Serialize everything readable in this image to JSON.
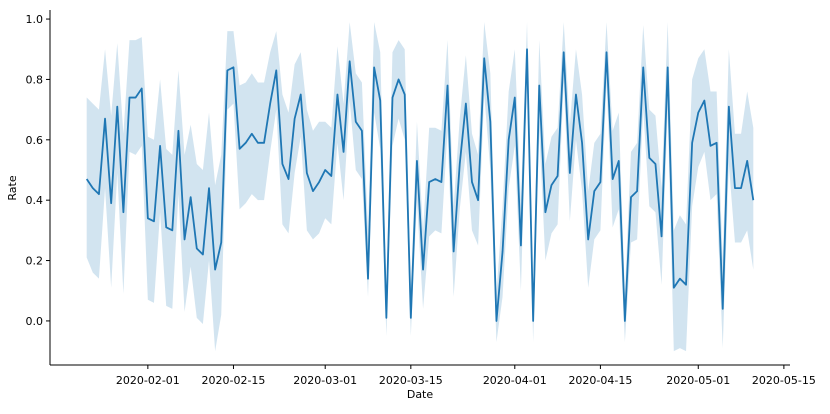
{
  "chart_data": {
    "type": "line",
    "x_label": "Date",
    "y_label": "Rate",
    "x": [
      "2020-01-22",
      "2020-01-23",
      "2020-01-24",
      "2020-01-25",
      "2020-01-26",
      "2020-01-27",
      "2020-01-28",
      "2020-01-29",
      "2020-01-30",
      "2020-01-31",
      "2020-02-01",
      "2020-02-02",
      "2020-02-03",
      "2020-02-04",
      "2020-02-05",
      "2020-02-06",
      "2020-02-07",
      "2020-02-08",
      "2020-02-09",
      "2020-02-10",
      "2020-02-11",
      "2020-02-12",
      "2020-02-13",
      "2020-02-14",
      "2020-02-15",
      "2020-02-16",
      "2020-02-17",
      "2020-02-18",
      "2020-02-19",
      "2020-02-20",
      "2020-02-21",
      "2020-02-22",
      "2020-02-23",
      "2020-02-24",
      "2020-02-25",
      "2020-02-26",
      "2020-02-27",
      "2020-02-28",
      "2020-02-29",
      "2020-03-01",
      "2020-03-02",
      "2020-03-03",
      "2020-03-04",
      "2020-03-05",
      "2020-03-06",
      "2020-03-07",
      "2020-03-08",
      "2020-03-09",
      "2020-03-10",
      "2020-03-11",
      "2020-03-12",
      "2020-03-13",
      "2020-03-14",
      "2020-03-15",
      "2020-03-16",
      "2020-03-17",
      "2020-03-18",
      "2020-03-19",
      "2020-03-20",
      "2020-03-21",
      "2020-03-22",
      "2020-03-23",
      "2020-03-24",
      "2020-03-25",
      "2020-03-26",
      "2020-03-27",
      "2020-03-28",
      "2020-03-29",
      "2020-03-30",
      "2020-03-31",
      "2020-04-01",
      "2020-04-02",
      "2020-04-03",
      "2020-04-04",
      "2020-04-05",
      "2020-04-06",
      "2020-04-07",
      "2020-04-08",
      "2020-04-09",
      "2020-04-10",
      "2020-04-11",
      "2020-04-12",
      "2020-04-13",
      "2020-04-14",
      "2020-04-15",
      "2020-04-16",
      "2020-04-17",
      "2020-04-18",
      "2020-04-19",
      "2020-04-20",
      "2020-04-21",
      "2020-04-22",
      "2020-04-23",
      "2020-04-24",
      "2020-04-25",
      "2020-04-26",
      "2020-04-27",
      "2020-04-28",
      "2020-04-29",
      "2020-04-30",
      "2020-05-01",
      "2020-05-02",
      "2020-05-03",
      "2020-05-04",
      "2020-05-05",
      "2020-05-06",
      "2020-05-07",
      "2020-05-08",
      "2020-05-09",
      "2020-05-10"
    ],
    "series": [
      {
        "color": "#1f77b4",
        "values": [
          0.47,
          0.44,
          0.42,
          0.67,
          0.39,
          0.71,
          0.36,
          0.74,
          0.74,
          0.77,
          0.34,
          0.33,
          0.58,
          0.31,
          0.3,
          0.63,
          0.27,
          0.41,
          0.24,
          0.22,
          0.44,
          0.17,
          0.26,
          0.83,
          0.84,
          0.57,
          0.59,
          0.62,
          0.59,
          0.59,
          0.72,
          0.83,
          0.52,
          0.47,
          0.67,
          0.75,
          0.49,
          0.43,
          0.46,
          0.5,
          0.48,
          0.75,
          0.56,
          0.86,
          0.66,
          0.63,
          0.14,
          0.84,
          0.73,
          0.01,
          0.74,
          0.8,
          0.75,
          0.01,
          0.53,
          0.17,
          0.46,
          0.47,
          0.46,
          0.78,
          0.23,
          0.52,
          0.72,
          0.46,
          0.4,
          0.87,
          0.66,
          0.0,
          0.23,
          0.6,
          0.74,
          0.25,
          0.9,
          0.0,
          0.78,
          0.36,
          0.45,
          0.48,
          0.89,
          0.49,
          0.75,
          0.59,
          0.27,
          0.43,
          0.46,
          0.89,
          0.47,
          0.53,
          0.0,
          0.41,
          0.43,
          0.84,
          0.54,
          0.52,
          0.28,
          0.84,
          0.11,
          0.14,
          0.12,
          0.59,
          0.69,
          0.73,
          0.58,
          0.59,
          0.04,
          0.71,
          0.44,
          0.44,
          0.53,
          0.4
        ],
        "ci_upper": [
          0.74,
          0.72,
          0.7,
          0.9,
          0.68,
          0.92,
          0.62,
          0.93,
          0.93,
          0.94,
          0.61,
          0.6,
          0.8,
          0.57,
          0.55,
          0.83,
          0.55,
          0.65,
          0.52,
          0.5,
          0.69,
          0.45,
          0.55,
          0.96,
          0.96,
          0.78,
          0.79,
          0.82,
          0.79,
          0.79,
          0.89,
          0.96,
          0.75,
          0.69,
          0.85,
          0.89,
          0.7,
          0.63,
          0.66,
          0.66,
          0.64,
          0.91,
          0.72,
          0.99,
          0.82,
          0.79,
          0.3,
          0.99,
          0.89,
          0.1,
          0.89,
          0.93,
          0.9,
          0.1,
          0.66,
          0.3,
          0.64,
          0.64,
          0.63,
          0.93,
          0.38,
          0.67,
          0.88,
          0.62,
          0.55,
          0.99,
          0.82,
          0.09,
          0.38,
          0.76,
          0.9,
          0.4,
          0.99,
          0.09,
          0.93,
          0.52,
          0.61,
          0.64,
          0.99,
          0.65,
          0.9,
          0.75,
          0.43,
          0.59,
          0.62,
          0.99,
          0.63,
          0.69,
          0.09,
          0.56,
          0.59,
          0.98,
          0.7,
          0.68,
          0.44,
          0.99,
          0.3,
          0.35,
          0.32,
          0.8,
          0.87,
          0.9,
          0.76,
          0.76,
          0.2,
          0.9,
          0.62,
          0.62,
          0.76,
          0.64
        ],
        "ci_lower": [
          0.21,
          0.16,
          0.14,
          0.44,
          0.11,
          0.49,
          0.09,
          0.56,
          0.55,
          0.58,
          0.07,
          0.06,
          0.36,
          0.05,
          0.04,
          0.42,
          0.03,
          0.18,
          0.01,
          -0.01,
          0.2,
          -0.1,
          0.02,
          0.7,
          0.72,
          0.37,
          0.39,
          0.42,
          0.4,
          0.4,
          0.56,
          0.7,
          0.32,
          0.29,
          0.49,
          0.61,
          0.3,
          0.27,
          0.29,
          0.34,
          0.32,
          0.59,
          0.4,
          0.73,
          0.5,
          0.47,
          0.08,
          0.69,
          0.57,
          -0.05,
          0.58,
          0.67,
          0.6,
          -0.05,
          0.4,
          0.04,
          0.28,
          0.3,
          0.29,
          0.63,
          0.08,
          0.37,
          0.56,
          0.3,
          0.25,
          0.75,
          0.5,
          -0.07,
          0.08,
          0.44,
          0.58,
          0.1,
          0.81,
          -0.07,
          0.63,
          0.2,
          0.29,
          0.32,
          0.79,
          0.33,
          0.6,
          0.43,
          0.11,
          0.27,
          0.3,
          0.79,
          0.31,
          0.37,
          -0.07,
          0.26,
          0.27,
          0.7,
          0.38,
          0.36,
          0.12,
          0.7,
          -0.1,
          -0.09,
          -0.1,
          0.38,
          0.51,
          0.56,
          0.4,
          0.42,
          -0.09,
          0.52,
          0.26,
          0.26,
          0.3,
          0.17
        ]
      }
    ],
    "xlim": [
      "2020-01-16",
      "2020-05-16"
    ],
    "xticks": [
      "2020-02-01",
      "2020-02-15",
      "2020-03-01",
      "2020-03-15",
      "2020-04-01",
      "2020-04-15",
      "2020-05-01",
      "2020-05-15"
    ],
    "ylim": [
      -0.146,
      1.03
    ],
    "yticks": [
      {
        "value": 0,
        "label": "0.0"
      },
      0.2,
      0.4,
      0.6,
      0.8,
      {
        "value": 1,
        "label": "1.0"
      }
    ]
  }
}
